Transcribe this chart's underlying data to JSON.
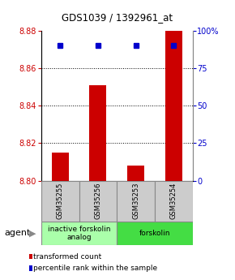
{
  "title": "GDS1039 / 1392961_at",
  "samples": [
    "GSM35255",
    "GSM35256",
    "GSM35253",
    "GSM35254"
  ],
  "bar_values": [
    8.815,
    8.851,
    8.808,
    8.882
  ],
  "percentile_values": [
    90,
    90,
    90,
    90
  ],
  "bar_color": "#cc0000",
  "dot_color": "#0000cc",
  "ylim_left": [
    8.8,
    8.88
  ],
  "ylim_right": [
    0,
    100
  ],
  "yticks_left": [
    8.8,
    8.82,
    8.84,
    8.86,
    8.88
  ],
  "yticks_right": [
    0,
    25,
    50,
    75,
    100
  ],
  "ytick_labels_right": [
    "0",
    "25",
    "50",
    "75",
    "100%"
  ],
  "grid_values": [
    8.82,
    8.84,
    8.86
  ],
  "agent_groups": [
    {
      "label": "inactive forskolin\nanalog",
      "color": "#aaffaa",
      "start": 0,
      "end": 1
    },
    {
      "label": "forskolin",
      "color": "#44dd44",
      "start": 2,
      "end": 3
    }
  ],
  "legend": [
    {
      "color": "#cc0000",
      "label": "transformed count"
    },
    {
      "color": "#0000cc",
      "label": "percentile rank within the sample"
    }
  ],
  "left_label_color": "#cc0000",
  "right_label_color": "#0000cc",
  "bar_width": 0.45,
  "plot_bg_color": "#ffffff",
  "agent_label": "agent",
  "bar_base": 8.8,
  "sample_box_color": "#cccccc",
  "sample_box_edge": "#888888"
}
